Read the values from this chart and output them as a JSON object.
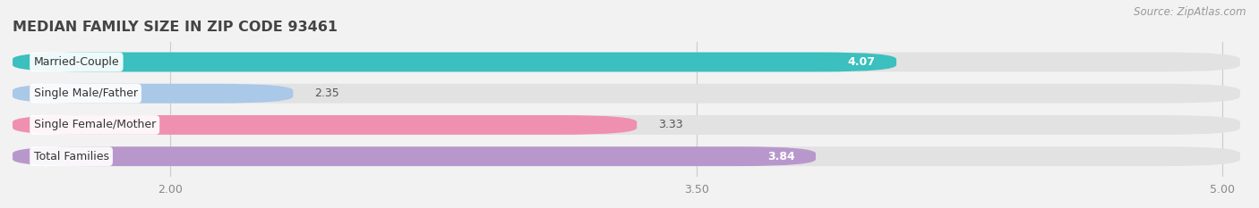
{
  "title": "MEDIAN FAMILY SIZE IN ZIP CODE 93461",
  "source": "Source: ZipAtlas.com",
  "categories": [
    "Married-Couple",
    "Single Male/Father",
    "Single Female/Mother",
    "Total Families"
  ],
  "values": [
    4.07,
    2.35,
    3.33,
    3.84
  ],
  "bar_colors": [
    "#3bbfbf",
    "#aac8e8",
    "#f090b0",
    "#b898cc"
  ],
  "bar_label_colors": [
    "white",
    "#555555",
    "#555555",
    "white"
  ],
  "label_inside": [
    true,
    false,
    false,
    true
  ],
  "xmin": 1.55,
  "xmax": 5.05,
  "xlim_display": [
    1.7,
    5.0
  ],
  "xticks": [
    2.0,
    3.5,
    5.0
  ],
  "background_color": "#f2f2f2",
  "bar_background_color": "#e2e2e2",
  "title_fontsize": 11.5,
  "label_fontsize": 9,
  "value_fontsize": 9,
  "tick_fontsize": 9,
  "source_fontsize": 8.5,
  "bar_height": 0.62,
  "n_bars": 4
}
